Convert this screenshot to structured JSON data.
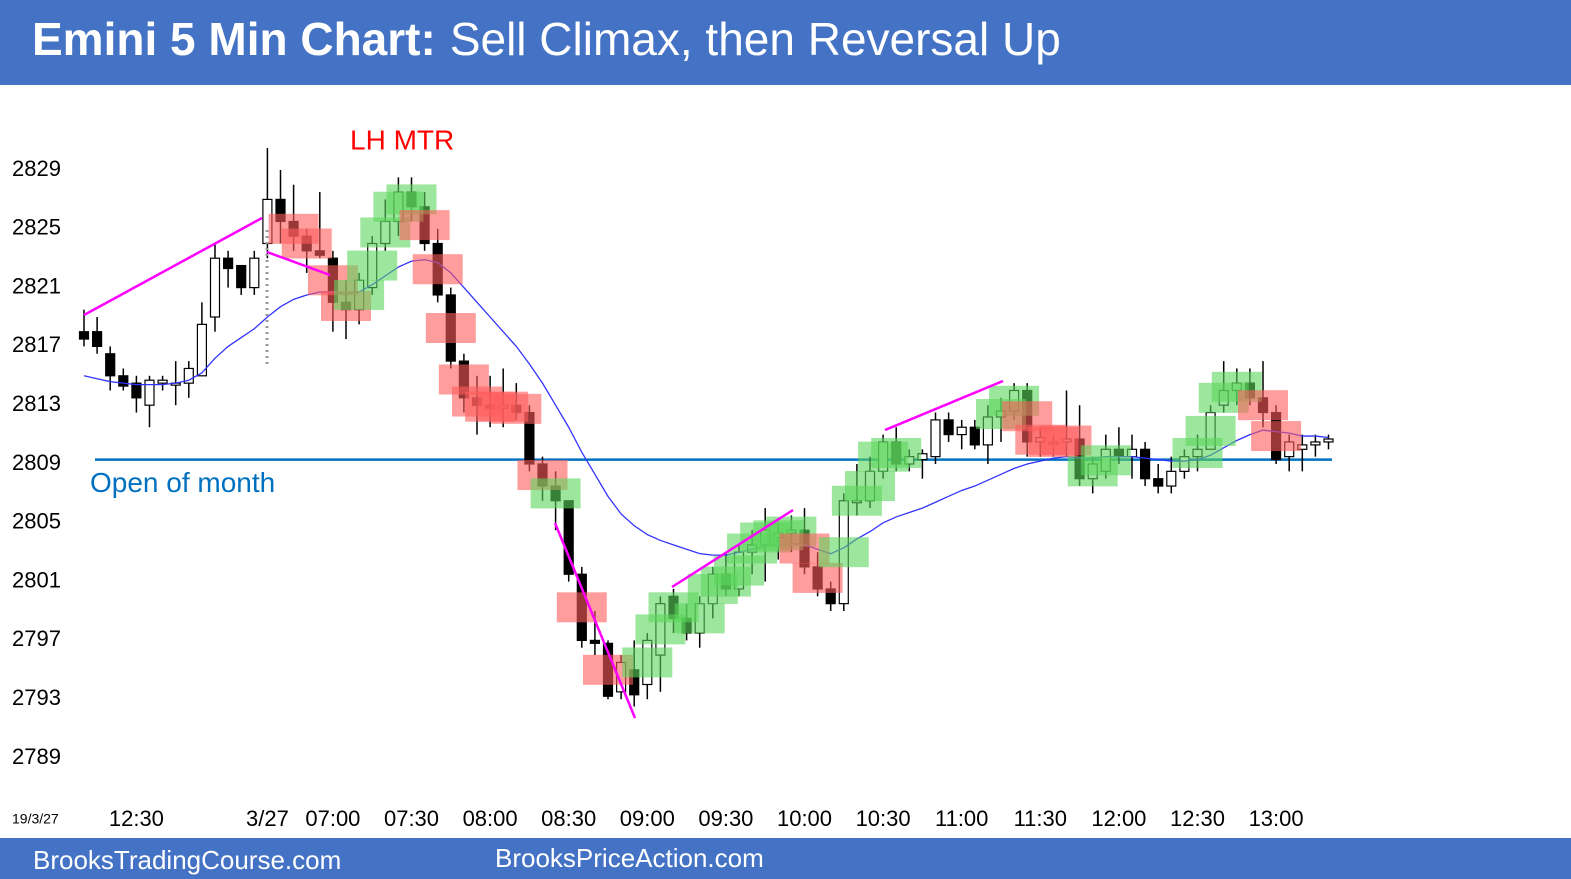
{
  "chart_data": {
    "type": "candlestick",
    "title_bold": "Emini 5 Min Chart:",
    "title": "Sell Climax, then Reversal Up",
    "annotation": "LH MTR",
    "date_label": "19/3/27",
    "footer_left": "BrooksTradingCourse.com",
    "footer_right": "BrooksPriceAction.com",
    "open_of_month": {
      "label": "Open of month",
      "value": 2809.3,
      "color": "#0070c0"
    },
    "ylim": [
      2786,
      2834
    ],
    "yticks": [
      2789,
      2793,
      2797,
      2801,
      2805,
      2809,
      2813,
      2817,
      2821,
      2825,
      2829
    ],
    "categories": [
      null,
      null,
      null,
      null,
      "12:30",
      null,
      null,
      null,
      null,
      null,
      null,
      null,
      null,
      null,
      "3/27",
      null,
      null,
      null,
      null,
      "07:00",
      null,
      null,
      null,
      null,
      null,
      "07:30",
      null,
      null,
      null,
      null,
      null,
      "08:00",
      null,
      null,
      null,
      null,
      null,
      "08:30",
      null,
      null,
      null,
      null,
      null,
      "09:00",
      null,
      null,
      null,
      null,
      null,
      "09:30",
      null,
      null,
      null,
      null,
      null,
      "10:00",
      null,
      null,
      null,
      null,
      null,
      "10:30",
      null,
      null,
      null,
      null,
      null,
      "11:00",
      null,
      null,
      null,
      null,
      null,
      "11:30",
      null,
      null,
      null,
      null,
      null,
      "12:00",
      null,
      null,
      null,
      null,
      null,
      "12:30",
      null,
      null,
      null,
      null,
      null,
      "13:00",
      null,
      null,
      null,
      null
    ],
    "open": [
      2818,
      2818,
      2816.5,
      2815,
      2814.5,
      2813,
      2814.5,
      2814.5,
      2814.5,
      2815,
      2819,
      2823,
      2822.5,
      2821,
      2824,
      2827,
      2825.5,
      2824.5,
      2823.5,
      2823,
      2820,
      2819.5,
      2821,
      2824,
      2825.5,
      2827.5,
      2826.5,
      2824,
      2820.5,
      2816,
      2813.5,
      2813,
      2812.8,
      2813,
      2812.5,
      2809,
      2807.5,
      2806.5,
      2801.5,
      2797,
      2796.8,
      2793.5,
      2795,
      2794,
      2796,
      2800,
      2798.5,
      2797.5,
      2799.5,
      2801.5,
      2800.5,
      2803,
      2803.5,
      2804,
      2804.3,
      2804.5,
      2802,
      2800.5,
      2799.5,
      2806.5,
      2806.5,
      2808.5,
      2810.5,
      2809,
      2809.3,
      2809.5,
      2812,
      2811,
      2811.5,
      2810.3,
      2812.2,
      2812.6,
      2814,
      2810.5,
      2810.5,
      2810.5,
      2810.7,
      2808,
      2808.5,
      2810,
      2809.5,
      2810,
      2808,
      2807.5,
      2808.5,
      2809.5,
      2810,
      2813,
      2814,
      2814.5,
      2813.5,
      2812.5,
      2809.5,
      2810,
      2810.3,
      2810.5
    ],
    "high": [
      2819.5,
      2819,
      2817,
      2815.5,
      2815,
      2815,
      2815,
      2816,
      2816,
      2820,
      2824,
      2823.5,
      2822.5,
      2823.5,
      2830.5,
      2829,
      2828,
      2825,
      2827.5,
      2823.5,
      2821.5,
      2822,
      2824.5,
      2827,
      2828.5,
      2828.5,
      2827.5,
      2825,
      2821,
      2816.5,
      2815,
      2815,
      2815.5,
      2814.5,
      2813,
      2809.5,
      2808.5,
      2806.5,
      2802,
      2799,
      2797,
      2796,
      2797,
      2797.5,
      2800,
      2800.5,
      2799.5,
      2800,
      2802,
      2803,
      2803.5,
      2804.5,
      2806,
      2805,
      2805.5,
      2806,
      2803,
      2801,
      2807,
      2809,
      2809.5,
      2811,
      2811.5,
      2810,
      2810,
      2812.5,
      2812.5,
      2812,
      2812,
      2813,
      2813.5,
      2814.5,
      2814.5,
      2811.5,
      2811,
      2814,
      2813,
      2809.5,
      2811,
      2811.5,
      2811,
      2810.5,
      2809,
      2809.5,
      2810,
      2811,
      2813,
      2816,
      2815.5,
      2815.5,
      2816,
      2813,
      2811,
      2811,
      2811,
      2811
    ],
    "low": [
      2817,
      2816.5,
      2814,
      2814,
      2812.5,
      2811.5,
      2814,
      2813,
      2813.5,
      2815,
      2818,
      2821,
      2820.5,
      2820.5,
      2823,
      2824,
      2823.5,
      2822,
      2823,
      2818,
      2817.5,
      2818.5,
      2820.5,
      2823.5,
      2824.5,
      2825.5,
      2823.5,
      2820,
      2815.5,
      2812.5,
      2811,
      2811.5,
      2811.5,
      2812,
      2808.5,
      2806.5,
      2804.5,
      2801,
      2796.5,
      2796,
      2793,
      2793,
      2792.5,
      2793,
      2793.5,
      2797.5,
      2797,
      2796.5,
      2798.5,
      2800,
      2800,
      2801.5,
      2801,
      2802.5,
      2803,
      2801.5,
      2800,
      2799,
      2799,
      2805.5,
      2806,
      2808,
      2808.5,
      2808.5,
      2808,
      2809,
      2810.5,
      2810,
      2810,
      2809,
      2810.5,
      2812,
      2809.5,
      2809.5,
      2809.5,
      2809.5,
      2807.5,
      2807,
      2808,
      2809,
      2808,
      2807.5,
      2807,
      2807,
      2808,
      2808.5,
      2810,
      2812.5,
      2813,
      2813,
      2811.5,
      2809,
      2808.5,
      2808.5,
      2809.5,
      2810
    ],
    "close": [
      2817.5,
      2817,
      2815,
      2814.3,
      2813.5,
      2814.7,
      2814.7,
      2814.5,
      2815.5,
      2818.5,
      2823,
      2822.3,
      2821,
      2823,
      2827,
      2825.5,
      2824.5,
      2823.5,
      2823.2,
      2820,
      2819.5,
      2821.5,
      2824,
      2825.5,
      2827.5,
      2826.5,
      2824,
      2820.5,
      2816,
      2813.5,
      2813,
      2812.8,
      2813,
      2812.5,
      2809,
      2807.5,
      2806.5,
      2801.5,
      2797,
      2796.8,
      2793.2,
      2795.5,
      2793.3,
      2797,
      2799.5,
      2798.5,
      2797.5,
      2799.5,
      2801.5,
      2800.5,
      2803,
      2803.5,
      2804.5,
      2804.3,
      2804.5,
      2802,
      2800.5,
      2799.5,
      2806.5,
      2806.5,
      2808.5,
      2810.5,
      2809,
      2809.5,
      2809.7,
      2812,
      2811,
      2811.5,
      2810.3,
      2812.2,
      2812.6,
      2814,
      2810.5,
      2810.8,
      2810.5,
      2810.7,
      2808,
      2809,
      2810,
      2809.5,
      2810,
      2808,
      2807.5,
      2808.5,
      2809.5,
      2810,
      2812.5,
      2814,
      2814.5,
      2813.5,
      2812.5,
      2809.3,
      2810.5,
      2810.3,
      2810.5,
      2810.7
    ],
    "ema": {
      "color": "#3333ff",
      "values": [
        2815,
        2814.8,
        2814.6,
        2814.5,
        2814.4,
        2814.4,
        2814.4,
        2814.5,
        2814.7,
        2815.2,
        2816.2,
        2817,
        2817.6,
        2818.2,
        2819,
        2819.7,
        2820.2,
        2820.5,
        2820.7,
        2820.7,
        2820.6,
        2820.7,
        2821.2,
        2821.8,
        2822.4,
        2822.8,
        2822.9,
        2822.7,
        2822,
        2821,
        2820,
        2819,
        2818,
        2817,
        2815.8,
        2814.5,
        2813,
        2811.5,
        2809.8,
        2808.3,
        2806.8,
        2805.6,
        2804.8,
        2804.2,
        2803.8,
        2803.5,
        2803.2,
        2802.9,
        2802.8,
        2802.8,
        2803,
        2803.2,
        2803.4,
        2803.5,
        2803.6,
        2803.5,
        2803.2,
        2802.9,
        2803.3,
        2803.9,
        2804.4,
        2805,
        2805.4,
        2805.7,
        2806,
        2806.4,
        2806.8,
        2807.2,
        2807.5,
        2807.9,
        2808.3,
        2808.7,
        2809,
        2809.2,
        2809.4,
        2809.5,
        2809.4,
        2809.4,
        2809.5,
        2809.5,
        2809.5,
        2809.4,
        2809.3,
        2809.2,
        2809.2,
        2809.3,
        2809.6,
        2810.1,
        2810.6,
        2811,
        2811.3,
        2811.2,
        2811.1,
        2810.9,
        2810.9,
        2810.8
      ]
    },
    "bar_highlights": [
      null,
      null,
      null,
      null,
      null,
      null,
      null,
      null,
      null,
      null,
      null,
      null,
      null,
      null,
      null,
      null,
      "#ff5c5c",
      "#ff5c5c",
      null,
      "#ff5c5c",
      "#ff5c5c",
      "#5cd65c",
      "#5cd65c",
      "#5cd65c",
      "#5cd65c",
      "#5cd65c",
      "#ff5c5c",
      "#ff5c5c",
      "#ff5c5c",
      "#ff5c5c",
      "#ff5c5c",
      "#ff5c5c",
      "#ff5c5c",
      "#ff5c5c",
      null,
      "#ff5c5c",
      "#5cd65c",
      null,
      "#ff5c5c",
      null,
      "#ff5c5c",
      null,
      null,
      "#5cd65c",
      "#5cd65c",
      "#5cd65c",
      null,
      "#5cd65c",
      "#5cd65c",
      "#5cd65c",
      "#5cd65c",
      "#5cd65c",
      "#5cd65c",
      "#5cd65c",
      "#5cd65c",
      "#ff5c5c",
      "#ff5c5c",
      null,
      "#5cd65c",
      "#5cd65c",
      "#5cd65c",
      "#5cd65c",
      "#5cd65c",
      null,
      null,
      null,
      null,
      null,
      null,
      null,
      "#5cd65c",
      "#5cd65c",
      "#ff5c5c",
      "#ff5c5c",
      "#ff5c5c",
      "#ff5c5c",
      null,
      "#5cd65c",
      "#5cd65c",
      null,
      null,
      null,
      null,
      null,
      null,
      "#5cd65c",
      "#5cd65c",
      "#5cd65c",
      "#5cd65c",
      null,
      "#ff5c5c",
      "#ff5c5c",
      null,
      null,
      null,
      null
    ],
    "up_color": "#ffffff",
    "down_color": "#000000",
    "header_color": "#4472c4"
  }
}
